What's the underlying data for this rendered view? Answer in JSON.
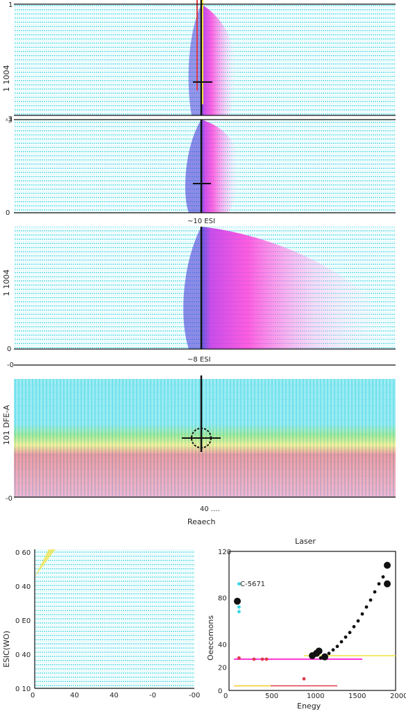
{
  "page": {
    "top_ylabels": [
      "1 1004",
      "1 1004",
      "1 1004",
      "101 DFE-A"
    ],
    "top_xlabel": "Reaech",
    "mid_labels": [
      "~10 ESI",
      "~10 ESI",
      "~8 ESI"
    ]
  },
  "colors": {
    "cyan": "#38d6e6",
    "magenta": "#ff36d8",
    "blue": "#4a40d8",
    "green": "#5cd23a",
    "yellow": "#f2e23a",
    "red": "#e03a4a",
    "pink": "#e66fa6",
    "black": "#111111"
  },
  "chart_data": [
    {
      "type": "heatmap",
      "ylabel": "1 1004",
      "yticks": [
        "1",
        "-3"
      ],
      "features": {
        "band": "cyan",
        "plume": "magenta",
        "edge": "blue",
        "spike_x": 0.5
      }
    },
    {
      "type": "heatmap",
      "ylabel": "1 1004",
      "yticks": [
        "-3",
        "0"
      ],
      "features": {
        "band": "cyan",
        "plume": "magenta",
        "edge": "blue",
        "spike_x": 0.5
      },
      "annotation": "~10 ESI"
    },
    {
      "type": "heatmap",
      "ylabel": "1 1004",
      "yticks": [
        "0"
      ],
      "features": {
        "band": "cyan",
        "plume": "magenta",
        "edge": "blue",
        "spike_x": 0.5
      },
      "annotation": "~8 ESI"
    },
    {
      "type": "heatmap",
      "ylabel": "101 DFE-A",
      "yticks": [
        "-0",
        "-0"
      ],
      "features": {
        "bands": [
          "cyan",
          "green",
          "yellow",
          "red",
          "pink"
        ]
      },
      "xticks": [
        "40 ...."
      ],
      "xlabel": "Reaech"
    },
    {
      "type": "heatmap",
      "ylabel": "ESIC(WO)",
      "yticks": [
        "0 60",
        "0 40",
        "0 E0",
        "0 40",
        "0 10"
      ],
      "xticks": [
        "0",
        "40",
        "40",
        "-0",
        "-00"
      ],
      "features": {
        "band": "cyan"
      }
    },
    {
      "type": "scatter",
      "title": "Laser",
      "xlabel": "Enegy",
      "ylabel": "Oeecomons",
      "xticks": [
        "0",
        "500",
        "1000",
        "1500",
        "2000"
      ],
      "yticks": [
        "0",
        "20",
        "40",
        "80",
        "120"
      ],
      "xlim": [
        0,
        2000
      ],
      "ylim": [
        0,
        120
      ],
      "annotation": "C-5671",
      "series": [
        {
          "color": "black",
          "points": [
            [
              1100,
              28
            ],
            [
              1150,
              30
            ],
            [
              1200,
              32
            ],
            [
              1250,
              35
            ],
            [
              1300,
              38
            ],
            [
              1350,
              42
            ],
            [
              1400,
              46
            ],
            [
              1450,
              50
            ],
            [
              1500,
              55
            ],
            [
              1550,
              60
            ],
            [
              1600,
              66
            ],
            [
              1650,
              72
            ],
            [
              1700,
              78
            ],
            [
              1750,
              85
            ],
            [
              1800,
              92
            ],
            [
              1850,
              98
            ]
          ],
          "highlight": [
            [
              1000,
              30
            ],
            [
              1050,
              32
            ],
            [
              1080,
              34
            ],
            [
              1150,
              29
            ],
            [
              1900,
              108
            ],
            [
              1900,
              92
            ],
            [
              100,
              77
            ]
          ]
        },
        {
          "color": "red",
          "points": [
            [
              120,
              28
            ],
            [
              300,
              27
            ],
            [
              400,
              27
            ],
            [
              450,
              27
            ],
            [
              900,
              10
            ]
          ]
        },
        {
          "color": "cyan",
          "points": [
            [
              120,
              92
            ],
            [
              120,
              72
            ],
            [
              120,
              68
            ]
          ]
        }
      ]
    }
  ]
}
